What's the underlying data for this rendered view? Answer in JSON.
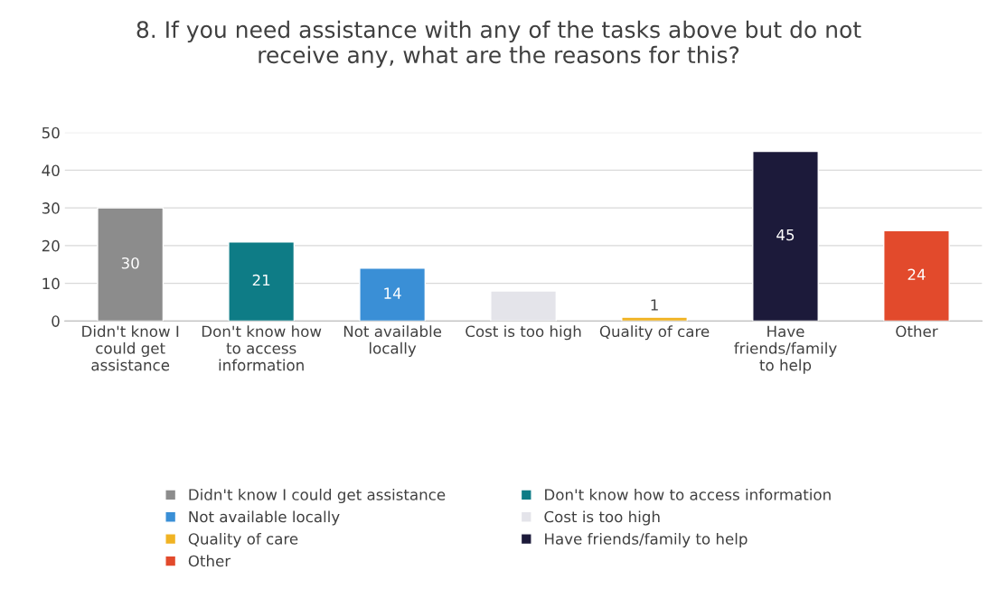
{
  "chart_data": {
    "type": "bar",
    "title": "8. If you need assistance with any of the tasks above but do not receive any, what are the reasons for this?",
    "categories": [
      "Didn't know I could get assistance",
      "Don't know how to access information",
      "Not available locally",
      "Cost is too high",
      "Quality of care",
      "Have friends/family to help",
      "Other"
    ],
    "series": [
      {
        "name": "Didn't know I could get assistance",
        "color": "#8c8c8c",
        "values": [
          30,
          null,
          null,
          null,
          null,
          null,
          null
        ],
        "value_labels": [
          "30",
          null,
          null,
          null,
          null,
          null,
          null
        ]
      },
      {
        "name": "Don't know how to access information",
        "color": "#0e7c86",
        "values": [
          null,
          21,
          null,
          null,
          null,
          null,
          null
        ],
        "value_labels": [
          null,
          "21",
          null,
          null,
          null,
          null,
          null
        ]
      },
      {
        "name": "Not available locally",
        "color": "#3a8fd6",
        "values": [
          null,
          null,
          14,
          null,
          null,
          null,
          null
        ],
        "value_labels": [
          null,
          null,
          "14",
          null,
          null,
          null,
          null
        ]
      },
      {
        "name": "Cost is too high",
        "color": "#e4e4ea",
        "values": [
          null,
          null,
          null,
          8,
          null,
          null,
          null
        ],
        "value_labels": [
          null,
          null,
          null,
          null,
          null,
          null,
          null
        ]
      },
      {
        "name": "Quality of care",
        "color": "#f0b323",
        "values": [
          null,
          null,
          null,
          null,
          1,
          null,
          null
        ],
        "value_labels": [
          null,
          null,
          null,
          null,
          "1",
          null,
          null
        ]
      },
      {
        "name": "Have friends/family to help",
        "color": "#1c1a3a",
        "values": [
          null,
          null,
          null,
          null,
          null,
          45,
          null
        ],
        "value_labels": [
          null,
          null,
          null,
          null,
          null,
          "45",
          null
        ]
      },
      {
        "name": "Other",
        "color": "#e24a2c",
        "values": [
          null,
          null,
          null,
          null,
          null,
          null,
          24
        ],
        "value_labels": [
          null,
          null,
          null,
          null,
          null,
          null,
          "24"
        ]
      }
    ],
    "ylim": [
      0,
      50
    ],
    "yticks": [
      0,
      10,
      20,
      30,
      40,
      50
    ],
    "grid": "y",
    "legend": "bottom"
  }
}
